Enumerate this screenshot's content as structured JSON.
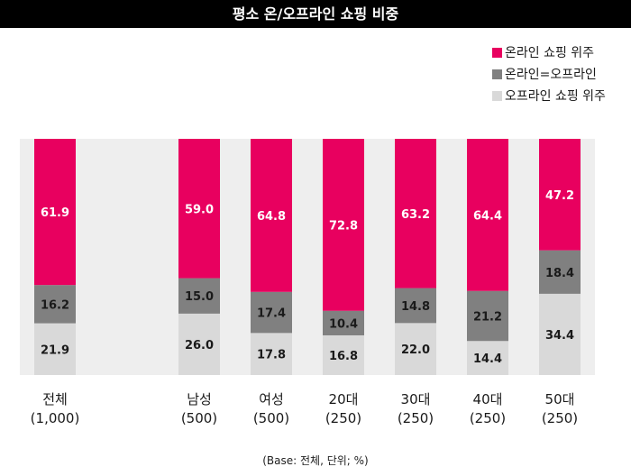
{
  "title": "평소 온/오프라인 쇼핑 비중",
  "footnote": "(Base: 전체, 단위; %)",
  "colors": {
    "online": "#e8005f",
    "equal": "#808080",
    "offline": "#d9d9d9",
    "title_bg": "#000000",
    "plot_bg": "#eeeeee"
  },
  "chart_data": {
    "type": "bar",
    "stacked": true,
    "percent": true,
    "title": "평소 온/오프라인 쇼핑 비중",
    "categories": [
      "전체",
      "남성",
      "여성",
      "20대",
      "30대",
      "40대",
      "50대"
    ],
    "category_bases": [
      "(1,000)",
      "(500)",
      "(500)",
      "(250)",
      "(250)",
      "(250)",
      "(250)"
    ],
    "series": [
      {
        "name": "오프라인 쇼핑 위주",
        "values": [
          21.9,
          26.0,
          17.8,
          16.8,
          22.0,
          14.4,
          34.4
        ]
      },
      {
        "name": "온라인=오프라인",
        "values": [
          16.2,
          15.0,
          17.4,
          10.4,
          14.8,
          21.2,
          18.4
        ]
      },
      {
        "name": "온라인 쇼핑 위주",
        "values": [
          61.9,
          59.0,
          64.8,
          72.8,
          63.2,
          64.4,
          47.2
        ]
      }
    ],
    "legend": [
      "온라인 쇼핑 위주",
      "온라인=오프라인",
      "오프라인 쇼핑 위주"
    ],
    "legend_position": "top-right",
    "ylim": [
      0,
      100
    ],
    "xlabel": "",
    "ylabel": "",
    "grid": false
  }
}
